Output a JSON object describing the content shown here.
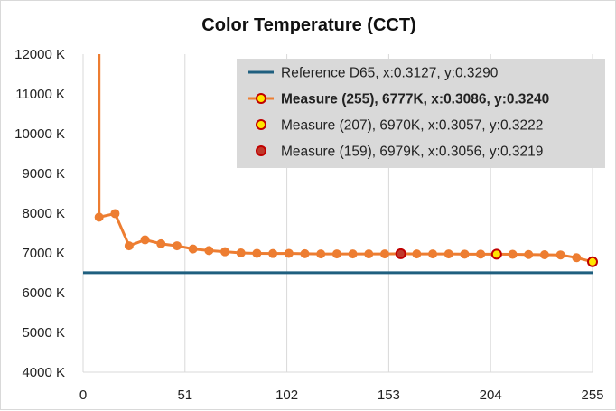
{
  "chart_data": {
    "type": "line",
    "title": "Color Temperature (CCT)",
    "xlabel": "",
    "ylabel": "",
    "xlim": [
      0,
      255
    ],
    "ylim": [
      4000,
      12000
    ],
    "x_ticks": [
      0,
      51,
      102,
      153,
      204,
      255
    ],
    "y_ticks": [
      4000,
      5000,
      6000,
      7000,
      8000,
      9000,
      10000,
      11000,
      12000
    ],
    "y_tick_labels": [
      "4000 K",
      "5000 K",
      "6000 K",
      "7000 K",
      "8000 K",
      "9000 K",
      "10000 K",
      "11000 K",
      "12000 K"
    ],
    "grid": "vertical",
    "legend_position": "top-right",
    "series": [
      {
        "name": "Reference D65, x:0.3127, y:0.3290",
        "kind": "reference-line",
        "color": "#1f5f7f",
        "x": [
          0,
          255
        ],
        "y": [
          6504,
          6504
        ]
      },
      {
        "name": "Measure (255), 6777K, x:0.3086, y:0.3240",
        "kind": "measure",
        "color": "#ed7d31",
        "x": [
          8,
          16,
          23,
          31,
          39,
          47,
          55,
          63,
          71,
          79,
          87,
          95,
          103,
          111,
          119,
          127,
          135,
          143,
          151,
          159,
          167,
          175,
          183,
          191,
          199,
          207,
          215,
          223,
          231,
          239,
          247,
          255
        ],
        "y": [
          7900,
          7990,
          7180,
          7330,
          7230,
          7180,
          7100,
          7060,
          7030,
          7000,
          6990,
          6985,
          6990,
          6980,
          6975,
          6975,
          6975,
          6975,
          6975,
          6979,
          6975,
          6975,
          6975,
          6970,
          6970,
          6970,
          6965,
          6960,
          6955,
          6950,
          6880,
          6777
        ],
        "pre_start_value": 12500
      }
    ],
    "highlights": [
      {
        "name": "Measure (255), 6777K, x:0.3086, y:0.3240",
        "x": 255,
        "y": 6777,
        "fill": "#ffe600",
        "stroke": "#c00000"
      },
      {
        "name": "Measure (207), 6970K, x:0.3057, y:0.3222",
        "x": 207,
        "y": 6970,
        "fill": "#ffe600",
        "stroke": "#c00000"
      },
      {
        "name": "Measure (159), 6979K, x:0.3056, y:0.3219",
        "x": 159,
        "y": 6979,
        "fill": "#c0392b",
        "stroke": "#c00000"
      }
    ],
    "legend": [
      {
        "label": "Reference D65, x:0.3127, y:0.3290",
        "symbol": "line",
        "color": "#1f5f7f",
        "bold": false
      },
      {
        "label": "Measure (255), 6777K, x:0.3086, y:0.3240",
        "symbol": "line-marker",
        "color": "#ed7d31",
        "marker_fill": "#ffe600",
        "bold": true
      },
      {
        "label": "Measure (207), 6970K, x:0.3057, y:0.3222",
        "symbol": "marker",
        "color": "#c00000",
        "marker_fill": "#ffe600",
        "bold": false
      },
      {
        "label": "Measure (159), 6979K, x:0.3056, y:0.3219",
        "symbol": "marker",
        "color": "#c00000",
        "marker_fill": "#c0392b",
        "bold": false
      }
    ]
  }
}
